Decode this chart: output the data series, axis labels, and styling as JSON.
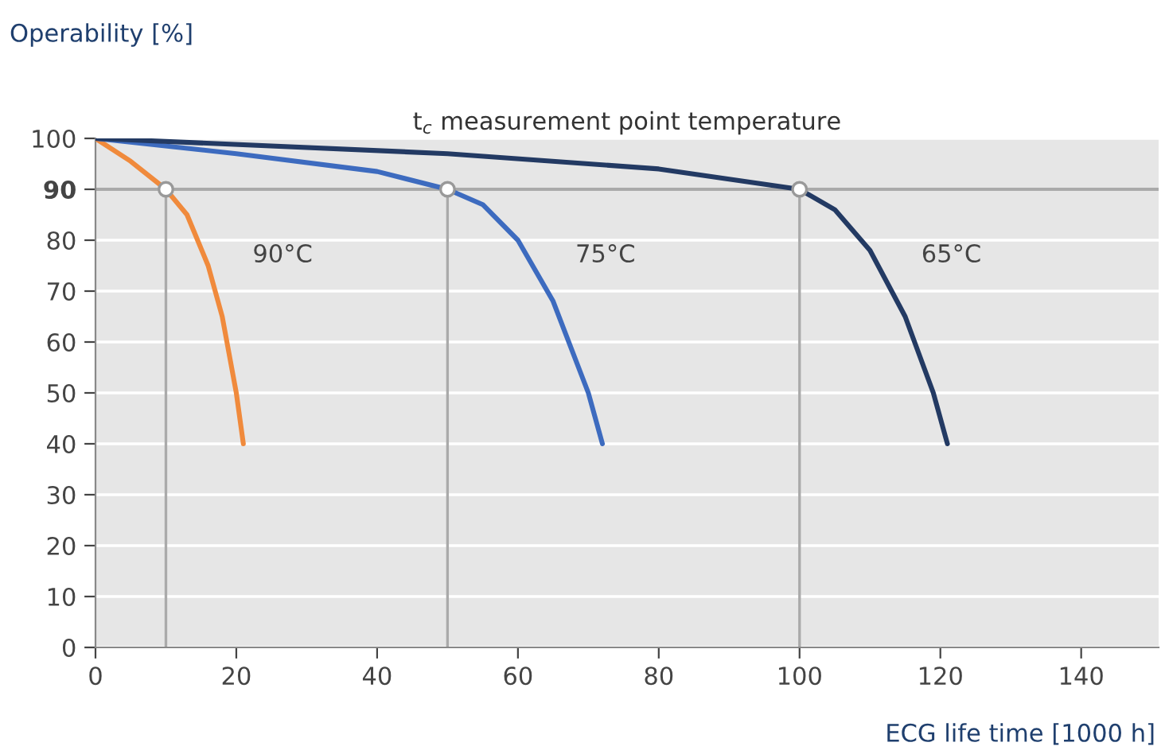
{
  "chart_data": {
    "type": "line",
    "title": "t$_{c}$ measurement point temperature",
    "xlabel": "ECG life time [1000 h]",
    "ylabel": "Operability [%]",
    "series": [
      {
        "name": "90°C",
        "color": "#f08a3c",
        "x": [
          0,
          5,
          10,
          13,
          16,
          18,
          20,
          21
        ],
        "values": [
          100,
          95.5,
          90,
          85,
          75,
          65,
          50,
          40
        ]
      },
      {
        "name": "75°C",
        "color": "#3d6bbf",
        "x": [
          0,
          20,
          40,
          50,
          55,
          60,
          65,
          70,
          72
        ],
        "values": [
          100,
          97,
          93.5,
          90,
          87,
          80,
          68,
          50,
          40
        ]
      },
      {
        "name": "65°C",
        "color": "#233a63",
        "x": [
          0,
          50,
          80,
          100,
          105,
          110,
          115,
          119,
          121
        ],
        "values": [
          100,
          97,
          94,
          90,
          86,
          78,
          65,
          50,
          40
        ]
      },
      {
        "type": "scatter",
        "color": "#999999",
        "x": [
          10,
          50,
          100
        ],
        "values": [
          90,
          90,
          90
        ]
      }
    ],
    "ref_lines": [
      {
        "axis": "y",
        "value": 90,
        "color": "#aaaaaa"
      },
      {
        "axis": "x",
        "value": 10,
        "color": "#aaaaaa"
      },
      {
        "axis": "x",
        "value": 50,
        "color": "#aaaaaa"
      },
      {
        "axis": "x",
        "value": 100,
        "color": "#aaaaaa"
      }
    ],
    "xlim": [
      0,
      151
    ],
    "xticks": [
      0,
      20,
      40,
      60,
      80,
      100,
      120,
      140
    ],
    "ylim": [
      0,
      100
    ],
    "yticks": [
      0,
      10,
      20,
      30,
      40,
      50,
      60,
      70,
      80,
      90,
      100
    ],
    "grid": "y",
    "legend": false
  }
}
